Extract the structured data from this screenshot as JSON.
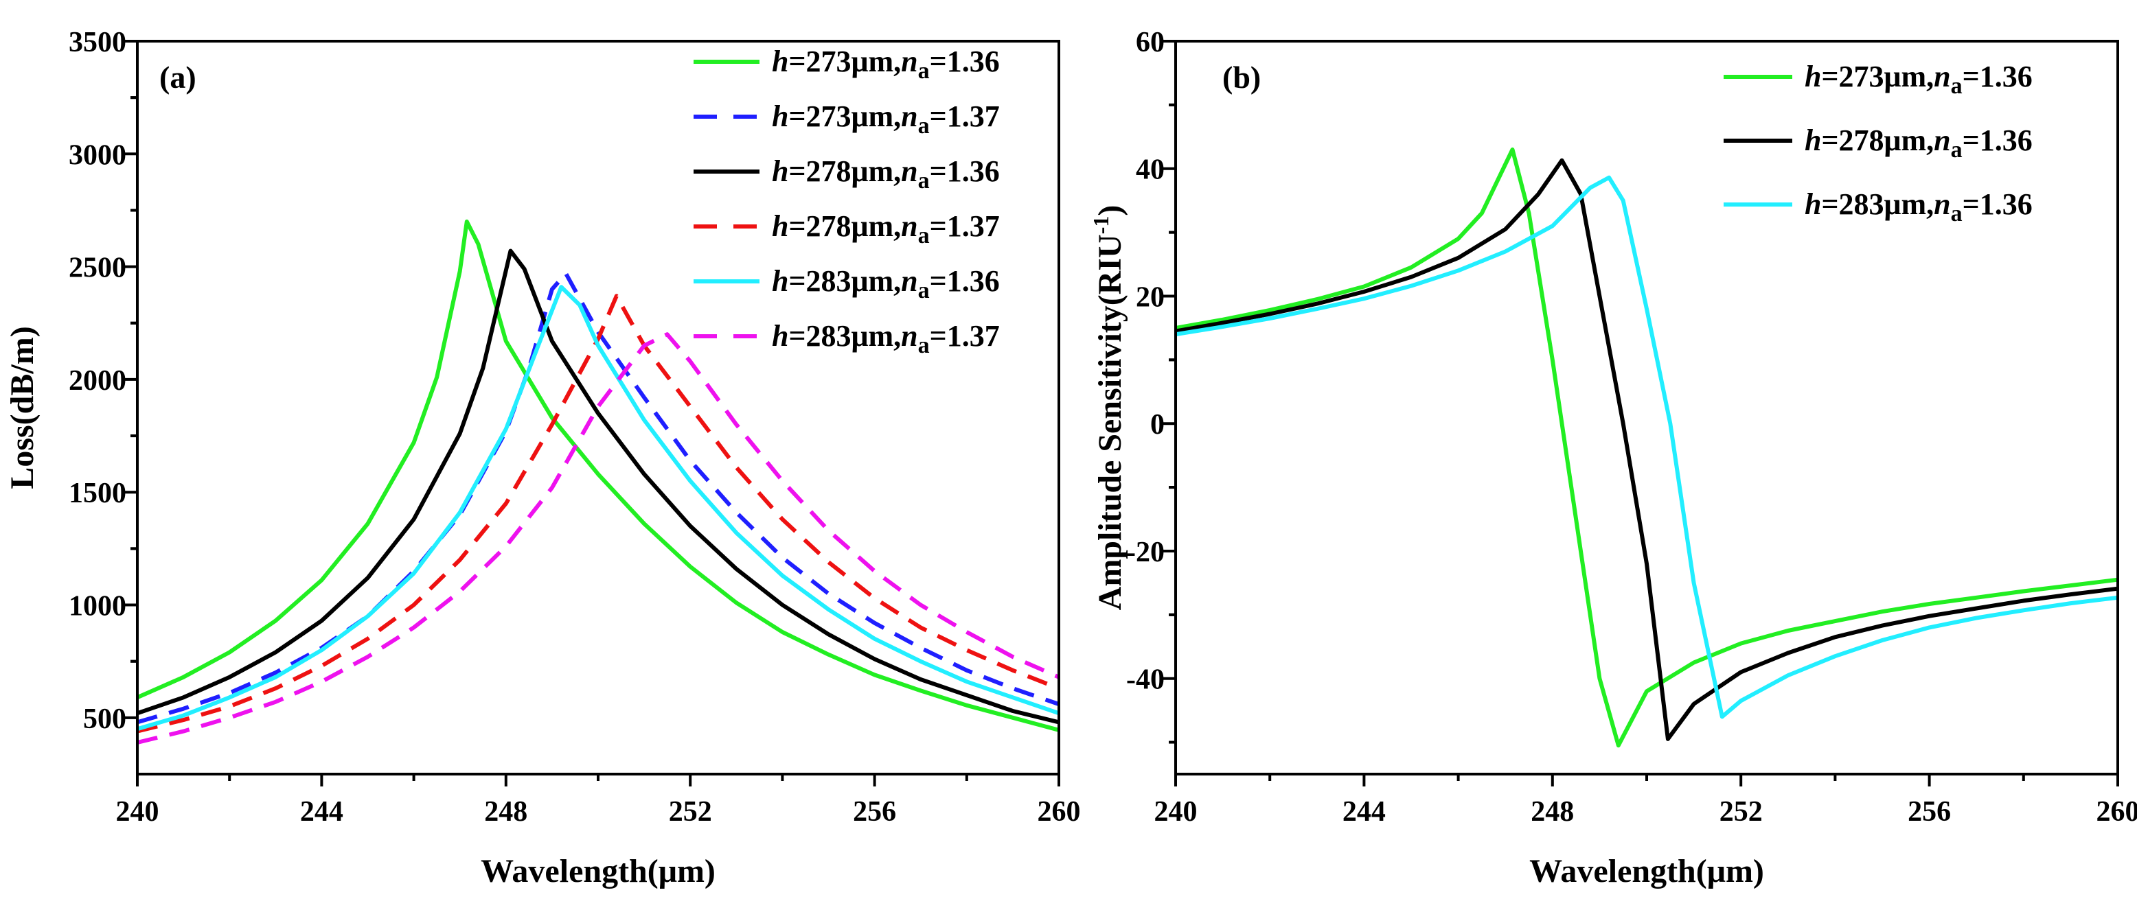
{
  "chart_data": [
    {
      "type": "line",
      "panel_label": "(a)",
      "xlabel": "Wavelength(μm)",
      "ylabel": "Loss(dB/m)",
      "xlim": [
        240,
        260
      ],
      "ylim": [
        250,
        3500
      ],
      "xticks": [
        240,
        244,
        248,
        252,
        256,
        260
      ],
      "yticks": [
        500,
        1000,
        1500,
        2000,
        2500,
        3000,
        3500
      ],
      "legend_position": "top-right",
      "series": [
        {
          "h": "273μm",
          "na": "1.36",
          "color": "#22ee22",
          "dashed": false,
          "points": [
            [
              240,
              590
            ],
            [
              241,
              680
            ],
            [
              242,
              790
            ],
            [
              243,
              930
            ],
            [
              244,
              1110
            ],
            [
              245,
              1360
            ],
            [
              246,
              1720
            ],
            [
              246.5,
              2010
            ],
            [
              247,
              2480
            ],
            [
              247.15,
              2700
            ],
            [
              247.4,
              2600
            ],
            [
              248,
              2170
            ],
            [
              249,
              1830
            ],
            [
              250,
              1580
            ],
            [
              251,
              1360
            ],
            [
              252,
              1170
            ],
            [
              253,
              1010
            ],
            [
              254,
              880
            ],
            [
              255,
              780
            ],
            [
              256,
              690
            ],
            [
              257,
              620
            ],
            [
              258,
              555
            ],
            [
              259,
              500
            ],
            [
              260,
              445
            ]
          ]
        },
        {
          "h": "273μm",
          "na": "1.37",
          "color": "#1f1fff",
          "dashed": true,
          "points": [
            [
              240,
              480
            ],
            [
              241,
              540
            ],
            [
              242,
              610
            ],
            [
              243,
              700
            ],
            [
              244,
              810
            ],
            [
              245,
              950
            ],
            [
              246,
              1150
            ],
            [
              247,
              1400
            ],
            [
              248,
              1770
            ],
            [
              248.5,
              2050
            ],
            [
              249,
              2400
            ],
            [
              249.3,
              2470
            ],
            [
              250,
              2210
            ],
            [
              251,
              1920
            ],
            [
              252,
              1640
            ],
            [
              253,
              1410
            ],
            [
              254,
              1210
            ],
            [
              255,
              1050
            ],
            [
              256,
              920
            ],
            [
              257,
              810
            ],
            [
              258,
              710
            ],
            [
              259,
              630
            ],
            [
              260,
              560
            ]
          ]
        },
        {
          "h": "278μm",
          "na": "1.36",
          "color": "#000000",
          "dashed": false,
          "points": [
            [
              240,
              520
            ],
            [
              241,
              590
            ],
            [
              242,
              680
            ],
            [
              243,
              790
            ],
            [
              244,
              930
            ],
            [
              245,
              1120
            ],
            [
              246,
              1380
            ],
            [
              247,
              1760
            ],
            [
              247.5,
              2050
            ],
            [
              248.1,
              2570
            ],
            [
              248.4,
              2490
            ],
            [
              249,
              2170
            ],
            [
              250,
              1850
            ],
            [
              251,
              1580
            ],
            [
              252,
              1350
            ],
            [
              253,
              1160
            ],
            [
              254,
              1000
            ],
            [
              255,
              870
            ],
            [
              256,
              760
            ],
            [
              257,
              670
            ],
            [
              258,
              600
            ],
            [
              259,
              530
            ],
            [
              260,
              480
            ]
          ]
        },
        {
          "h": "278μm",
          "na": "1.37",
          "color": "#ee1111",
          "dashed": true,
          "points": [
            [
              240,
              440
            ],
            [
              241,
              490
            ],
            [
              242,
              550
            ],
            [
              243,
              630
            ],
            [
              244,
              730
            ],
            [
              245,
              850
            ],
            [
              246,
              1000
            ],
            [
              247,
              1200
            ],
            [
              248,
              1450
            ],
            [
              249,
              1800
            ],
            [
              250,
              2180
            ],
            [
              250.4,
              2370
            ],
            [
              251,
              2150
            ],
            [
              252,
              1880
            ],
            [
              253,
              1610
            ],
            [
              254,
              1380
            ],
            [
              255,
              1190
            ],
            [
              256,
              1030
            ],
            [
              257,
              900
            ],
            [
              258,
              800
            ],
            [
              259,
              710
            ],
            [
              260,
              630
            ]
          ]
        },
        {
          "h": "283μm",
          "na": "1.36",
          "color": "#22eeff",
          "dashed": false,
          "points": [
            [
              240,
              450
            ],
            [
              241,
              510
            ],
            [
              242,
              590
            ],
            [
              243,
              680
            ],
            [
              244,
              800
            ],
            [
              245,
              950
            ],
            [
              246,
              1140
            ],
            [
              247,
              1410
            ],
            [
              248,
              1780
            ],
            [
              248.7,
              2150
            ],
            [
              249.2,
              2410
            ],
            [
              249.6,
              2330
            ],
            [
              250,
              2150
            ],
            [
              251,
              1820
            ],
            [
              252,
              1550
            ],
            [
              253,
              1320
            ],
            [
              254,
              1130
            ],
            [
              255,
              980
            ],
            [
              256,
              850
            ],
            [
              257,
              750
            ],
            [
              258,
              660
            ],
            [
              259,
              590
            ],
            [
              260,
              520
            ]
          ]
        },
        {
          "h": "283μm",
          "na": "1.37",
          "color": "#ee11ee",
          "dashed": true,
          "points": [
            [
              240,
              390
            ],
            [
              241,
              440
            ],
            [
              242,
              500
            ],
            [
              243,
              570
            ],
            [
              244,
              660
            ],
            [
              245,
              770
            ],
            [
              246,
              900
            ],
            [
              247,
              1060
            ],
            [
              248,
              1260
            ],
            [
              249,
              1520
            ],
            [
              250,
              1880
            ],
            [
              251,
              2150
            ],
            [
              251.5,
              2200
            ],
            [
              252,
              2080
            ],
            [
              253,
              1800
            ],
            [
              254,
              1550
            ],
            [
              255,
              1330
            ],
            [
              256,
              1150
            ],
            [
              257,
              1000
            ],
            [
              258,
              880
            ],
            [
              259,
              770
            ],
            [
              260,
              680
            ]
          ]
        }
      ]
    },
    {
      "type": "line",
      "panel_label": "(b)",
      "xlabel": "Wavelength(μm)",
      "ylabel": "Amplitude Sensitivity(RIU-1)",
      "ylabel_parts": [
        "Amplitude Sensitivity(RIU",
        "-1",
        ")"
      ],
      "xlim": [
        240,
        260
      ],
      "ylim": [
        -55,
        60
      ],
      "xticks": [
        240,
        244,
        248,
        252,
        256,
        260
      ],
      "yticks": [
        -40,
        -20,
        0,
        20,
        40,
        60
      ],
      "legend_position": "top-right",
      "series": [
        {
          "h": "273μm",
          "na": "1.36",
          "color": "#22ee22",
          "dashed": false,
          "points": [
            [
              240,
              15
            ],
            [
              241,
              16.3
            ],
            [
              242,
              17.8
            ],
            [
              243,
              19.5
            ],
            [
              244,
              21.5
            ],
            [
              245,
              24.5
            ],
            [
              246,
              29
            ],
            [
              246.5,
              33
            ],
            [
              247.15,
              43
            ],
            [
              247.5,
              33
            ],
            [
              248,
              10
            ],
            [
              248.5,
              -15
            ],
            [
              249,
              -40
            ],
            [
              249.4,
              -50.5
            ],
            [
              250,
              -42
            ],
            [
              251,
              -37.5
            ],
            [
              252,
              -34.5
            ],
            [
              253,
              -32.5
            ],
            [
              254,
              -31
            ],
            [
              255,
              -29.5
            ],
            [
              256,
              -28.3
            ],
            [
              257,
              -27.3
            ],
            [
              258,
              -26.3
            ],
            [
              259,
              -25.4
            ],
            [
              260,
              -24.5
            ]
          ]
        },
        {
          "h": "278μm",
          "na": "1.36",
          "color": "#000000",
          "dashed": false,
          "points": [
            [
              240,
              14.5
            ],
            [
              241,
              15.8
            ],
            [
              242,
              17.2
            ],
            [
              243,
              18.8
            ],
            [
              244,
              20.7
            ],
            [
              245,
              23
            ],
            [
              246,
              26
            ],
            [
              247,
              30.5
            ],
            [
              247.7,
              36
            ],
            [
              248.2,
              41.3
            ],
            [
              248.6,
              36
            ],
            [
              249,
              20
            ],
            [
              249.5,
              0
            ],
            [
              250,
              -22
            ],
            [
              250.45,
              -49.5
            ],
            [
              251,
              -44
            ],
            [
              252,
              -39
            ],
            [
              253,
              -36
            ],
            [
              254,
              -33.5
            ],
            [
              255,
              -31.7
            ],
            [
              256,
              -30.2
            ],
            [
              257,
              -29
            ],
            [
              258,
              -27.8
            ],
            [
              259,
              -26.8
            ],
            [
              260,
              -25.9
            ]
          ]
        },
        {
          "h": "283μm",
          "na": "1.36",
          "color": "#22eeff",
          "dashed": false,
          "points": [
            [
              240,
              14
            ],
            [
              241,
              15.2
            ],
            [
              242,
              16.5
            ],
            [
              243,
              18
            ],
            [
              244,
              19.6
            ],
            [
              245,
              21.6
            ],
            [
              246,
              24
            ],
            [
              247,
              27
            ],
            [
              248,
              31
            ],
            [
              248.8,
              37
            ],
            [
              249.2,
              38.6
            ],
            [
              249.5,
              35
            ],
            [
              250,
              18
            ],
            [
              250.5,
              0
            ],
            [
              251,
              -25
            ],
            [
              251.6,
              -46
            ],
            [
              252,
              -43.5
            ],
            [
              253,
              -39.5
            ],
            [
              254,
              -36.5
            ],
            [
              255,
              -34
            ],
            [
              256,
              -32
            ],
            [
              257,
              -30.5
            ],
            [
              258,
              -29.3
            ],
            [
              259,
              -28.2
            ],
            [
              260,
              -27.3
            ]
          ]
        }
      ]
    }
  ]
}
